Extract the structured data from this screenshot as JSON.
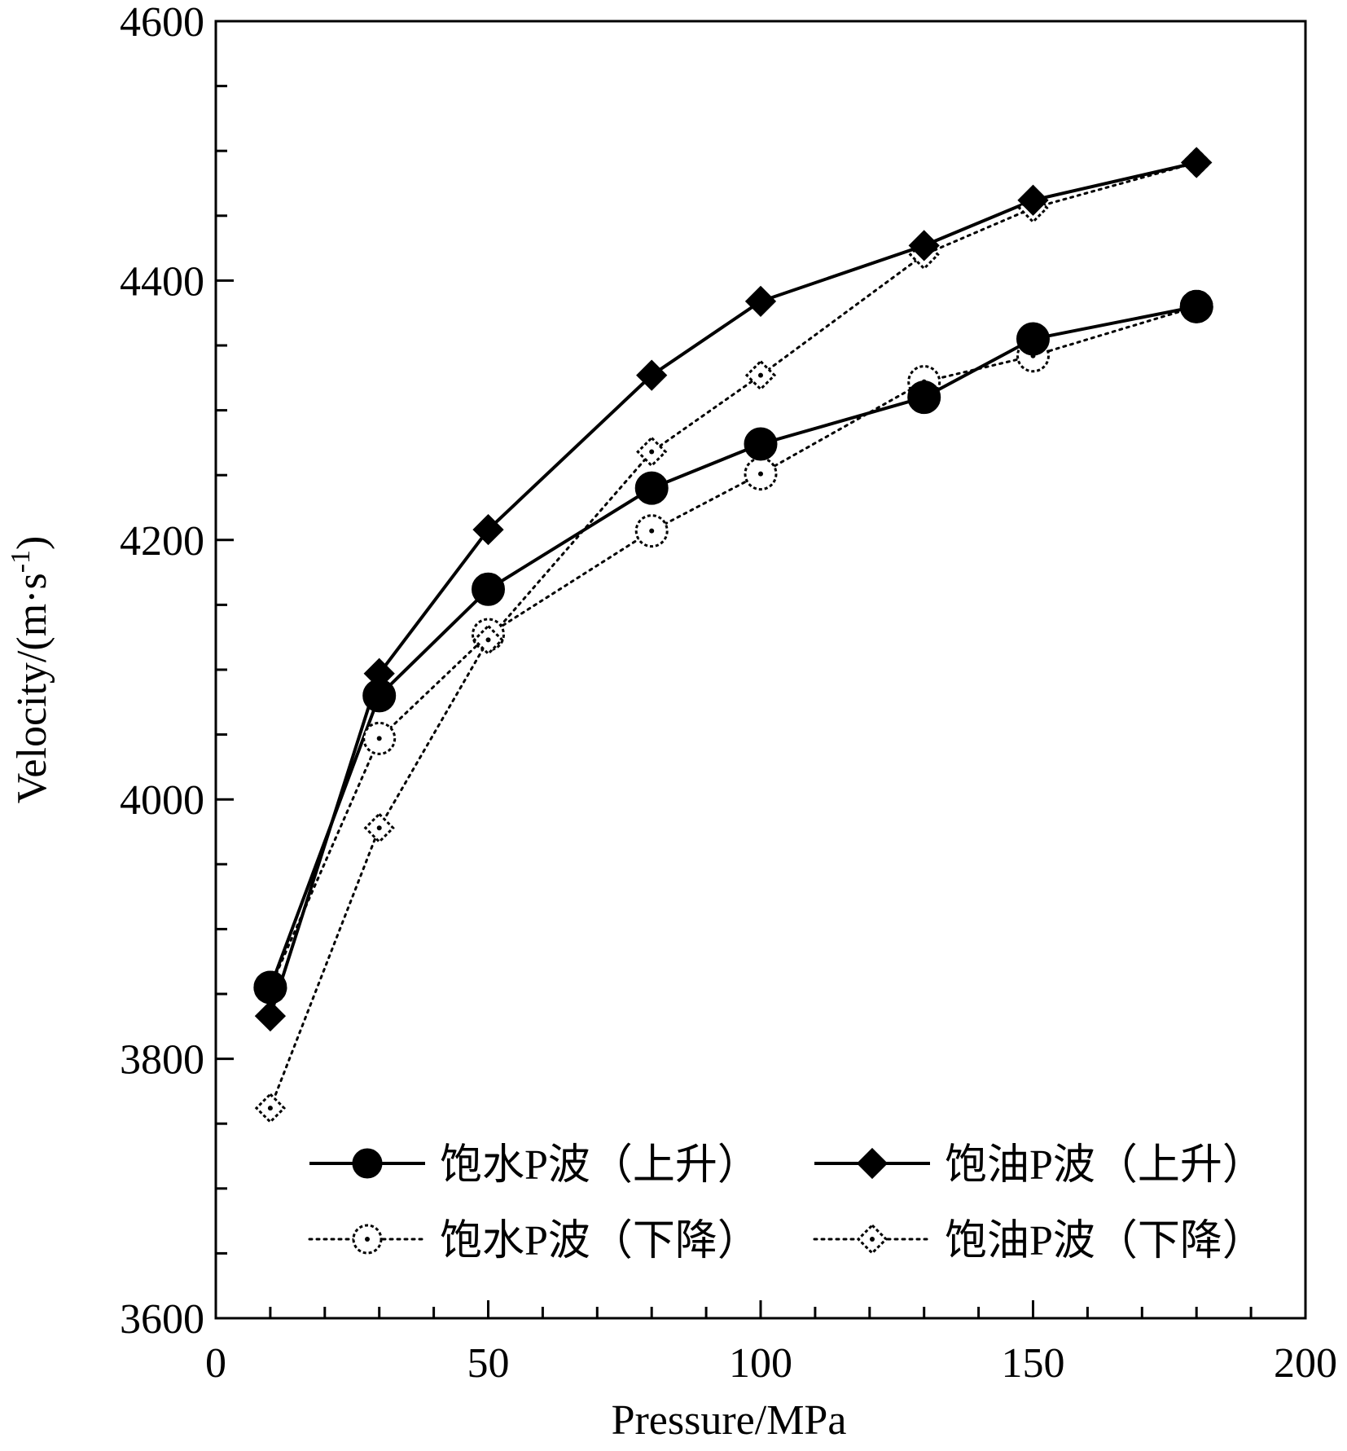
{
  "chart_data": {
    "type": "line",
    "title": "",
    "xlabel": "Pressure/MPa",
    "ylabel": "Velocity/(m·s",
    "ylabel_sup": "-1",
    "ylabel_close": ")",
    "xlim": [
      0,
      200
    ],
    "ylim": [
      3600,
      4600
    ],
    "xticks": [
      0,
      50,
      100,
      150,
      200
    ],
    "xtick_labels": [
      "0",
      "50",
      "100",
      "150",
      "200"
    ],
    "yticks": [
      3600,
      3800,
      4000,
      4200,
      4400,
      4600
    ],
    "ytick_labels": [
      "3600",
      "3800",
      "4000",
      "4200",
      "4400",
      "4600"
    ],
    "grid": false,
    "legend_position": "bottom-right",
    "x": [
      10,
      30,
      50,
      80,
      100,
      130,
      150,
      180
    ],
    "series": [
      {
        "name": "饱水P波（上升）",
        "line": "solid",
        "marker": "circle",
        "filled": true,
        "values": [
          3855,
          4080,
          4162,
          4240,
          4274,
          4310,
          4355,
          4380
        ]
      },
      {
        "name": "饱油P波（上升）",
        "line": "solid",
        "marker": "diamond",
        "filled": true,
        "values": [
          3833,
          4097,
          4208,
          4327,
          4384,
          4427,
          4462,
          4491
        ]
      },
      {
        "name": "饱水P波（下降）",
        "line": "dotted",
        "marker": "circle",
        "filled": false,
        "values": [
          3855,
          4047,
          4127,
          4207,
          4251,
          4322,
          4342,
          4380
        ]
      },
      {
        "name": "饱油P波（下降）",
        "line": "dotted",
        "marker": "diamond",
        "filled": false,
        "values": [
          3762,
          3978,
          4123,
          4268,
          4327,
          4420,
          4456,
          4491
        ]
      }
    ]
  }
}
